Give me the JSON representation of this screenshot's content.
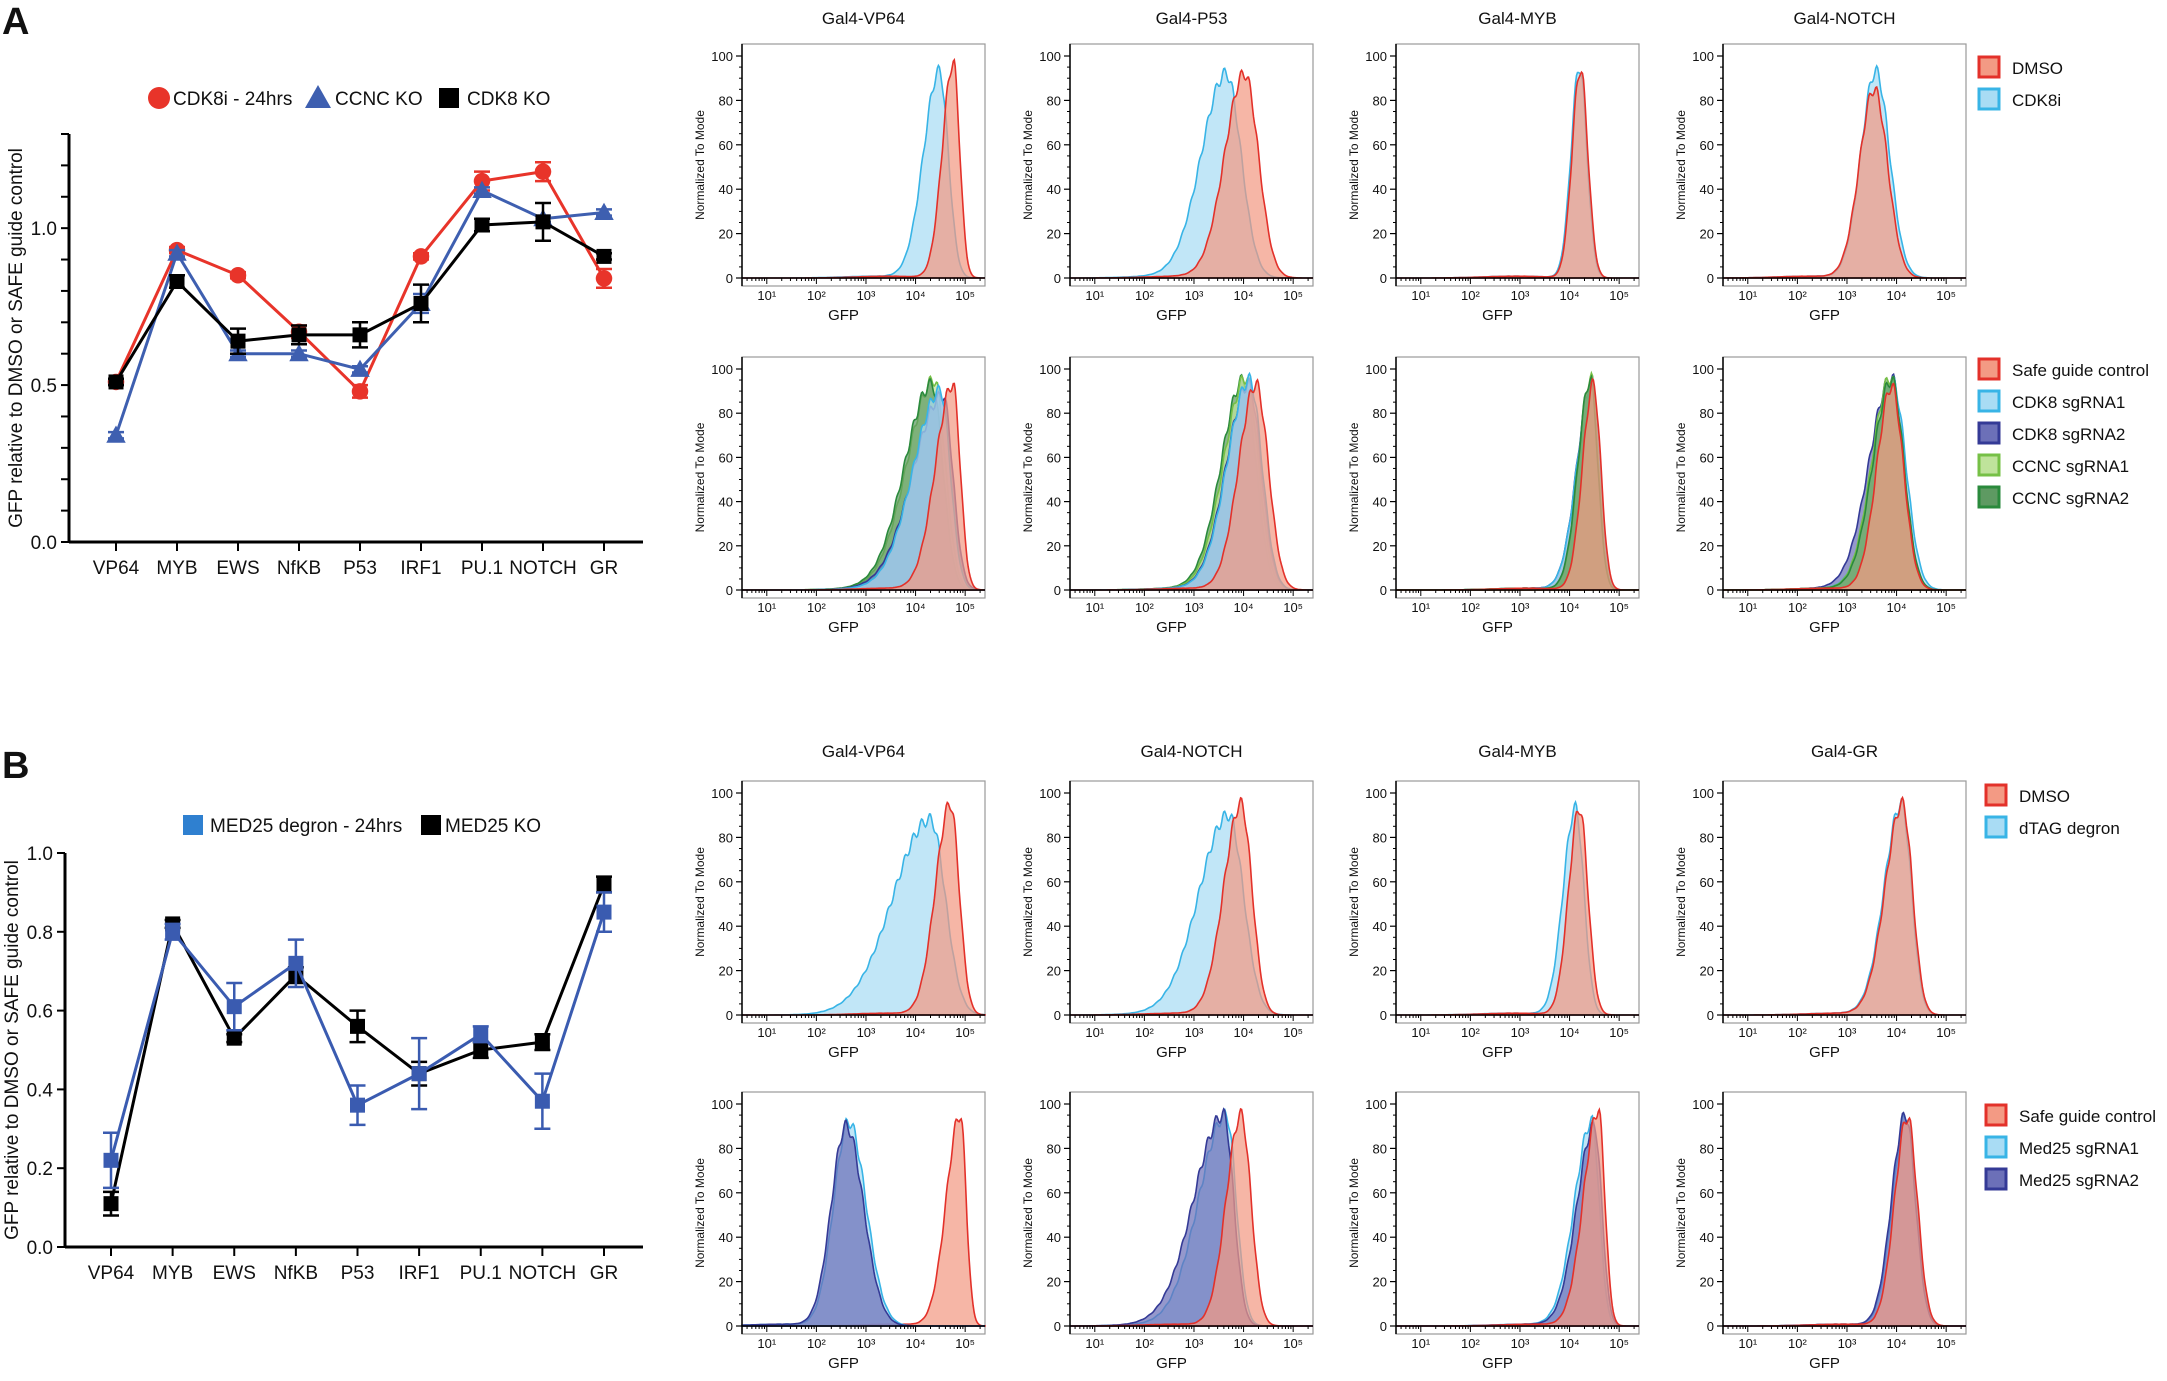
{
  "panels": [
    {
      "letter": "A"
    },
    {
      "letter": "B"
    }
  ],
  "chart_data": [
    {
      "type": "line",
      "panel": "A",
      "ylabel": "GFP relative to DMSO or SAFE guide control",
      "categories": [
        "VP64",
        "MYB",
        "EWS",
        "NfKB",
        "P53",
        "IRF1",
        "PU.1",
        "NOTCH",
        "GR"
      ],
      "ylim": [
        0,
        1.3
      ],
      "yticks": [
        0,
        0.1,
        0.2,
        0.3,
        0.4,
        0.5,
        0.6,
        0.7,
        0.8,
        0.9,
        1.0,
        1.1,
        1.2,
        1.3
      ],
      "ytick_labels": [
        "0.0",
        "0.5",
        "1.0"
      ],
      "ytick_label_values": [
        0,
        0.5,
        1.0
      ],
      "legend_position": "top",
      "series": [
        {
          "name": "CDK8i - 24hrs",
          "marker": "circle",
          "color": "#e8342a",
          "values": [
            0.51,
            0.93,
            0.85,
            0.67,
            0.48,
            0.91,
            1.15,
            1.18,
            0.84
          ],
          "errors": [
            0.01,
            0.01,
            0.01,
            0.02,
            0.02,
            0.01,
            0.03,
            0.03,
            0.03
          ]
        },
        {
          "name": "CCNC KO",
          "marker": "triangle",
          "color": "#3e5fb0",
          "values": [
            0.34,
            0.92,
            0.6,
            0.6,
            0.55,
            0.76,
            1.12,
            1.03,
            1.05
          ],
          "errors": [
            0.01,
            0.01,
            0.01,
            0.01,
            0.01,
            0.03,
            0.01,
            0.01,
            0.01
          ]
        },
        {
          "name": "CDK8 KO",
          "marker": "square",
          "color": "#000000",
          "values": [
            0.51,
            0.83,
            0.64,
            0.66,
            0.66,
            0.76,
            1.01,
            1.02,
            0.91
          ],
          "errors": [
            0.01,
            0.02,
            0.04,
            0.03,
            0.04,
            0.06,
            0.02,
            0.06,
            0.01
          ]
        }
      ]
    },
    {
      "type": "line",
      "panel": "B",
      "ylabel": "GFP relative to DMSO or SAFE guide control",
      "categories": [
        "VP64",
        "MYB",
        "EWS",
        "NfKB",
        "P53",
        "IRF1",
        "PU.1",
        "NOTCH",
        "GR"
      ],
      "ylim": [
        0,
        1.0
      ],
      "yticks": [
        0,
        0.2,
        0.4,
        0.6,
        0.8,
        1.0
      ],
      "ytick_labels": [
        "0.0",
        "0.2",
        "0.4",
        "0.6",
        "0.8",
        "1.0"
      ],
      "ytick_label_values": [
        0,
        0.2,
        0.4,
        0.6,
        0.8,
        1.0
      ],
      "legend_position": "top",
      "series": [
        {
          "name": "MED25 KO",
          "marker": "square",
          "color": "#000000",
          "values": [
            0.11,
            0.82,
            0.53,
            0.69,
            0.56,
            0.44,
            0.5,
            0.52,
            0.92
          ],
          "errors": [
            0.03,
            0.01,
            0.01,
            0.02,
            0.04,
            0.03,
            0.02,
            0.02,
            0.02
          ]
        },
        {
          "name": "MED25 degron - 24hrs",
          "marker": "square",
          "color": "#3a5bb0",
          "legend_color": "#2f80d0",
          "values": [
            0.22,
            0.8,
            0.61,
            0.72,
            0.36,
            0.44,
            0.54,
            0.37,
            0.85
          ],
          "errors": [
            0.07,
            0.02,
            0.06,
            0.06,
            0.05,
            0.09,
            0.02,
            0.07,
            0.05
          ]
        }
      ],
      "legend_order": [
        1,
        0
      ]
    }
  ],
  "histograms": {
    "xlabel": "GFP",
    "ylabel": "Normalized To Mode",
    "xtick_labels": [
      "10¹",
      "10²",
      "10³",
      "10⁴",
      "10⁵"
    ],
    "xtick_exponents": [
      1,
      2,
      3,
      4,
      5
    ],
    "xlim_log10": [
      0.5,
      5.4
    ],
    "ylim": [
      0,
      100
    ],
    "ytick_labels": [
      "0",
      "20",
      "40",
      "60",
      "80",
      "100"
    ],
    "styles": {
      "red": {
        "fill": "#f39a84",
        "stroke": "#e3312a"
      },
      "cyan": {
        "fill": "#a9dcf4",
        "stroke": "#38b4e6"
      },
      "navy": {
        "fill": "#6c70b8",
        "stroke": "#343a96"
      },
      "lime": {
        "fill": "#bfe39b",
        "stroke": "#76c046"
      },
      "green": {
        "fill": "#5e9a62",
        "stroke": "#2a8a3c"
      }
    },
    "rows": [
      {
        "titles": [
          "Gal4-VP64",
          "Gal4-P53",
          "Gal4-MYB",
          "Gal4-NOTCH"
        ],
        "legend": [
          {
            "label": "DMSO",
            "style": "red"
          },
          {
            "label": "CDK8i",
            "style": "cyan"
          }
        ],
        "panels": [
          [
            {
              "style": "cyan",
              "peak_log10": 4.48,
              "height": 93,
              "sd_left": 0.32,
              "sd_right": 0.18
            },
            {
              "style": "red",
              "peak_log10": 4.76,
              "height": 97,
              "sd_left": 0.22,
              "sd_right": 0.13
            }
          ],
          [
            {
              "style": "cyan",
              "peak_log10": 3.65,
              "height": 92,
              "sd_left": 0.5,
              "sd_right": 0.3
            },
            {
              "style": "red",
              "peak_log10": 4.02,
              "height": 92,
              "sd_left": 0.4,
              "sd_right": 0.28
            }
          ],
          [
            {
              "style": "cyan",
              "peak_log10": 4.2,
              "height": 95,
              "sd_left": 0.17,
              "sd_right": 0.15
            },
            {
              "style": "red",
              "peak_log10": 4.22,
              "height": 94,
              "sd_left": 0.17,
              "sd_right": 0.15
            }
          ],
          [
            {
              "style": "cyan",
              "peak_log10": 3.58,
              "height": 93,
              "sd_left": 0.3,
              "sd_right": 0.28
            },
            {
              "style": "red",
              "peak_log10": 3.55,
              "height": 85,
              "sd_left": 0.3,
              "sd_right": 0.27
            }
          ]
        ]
      },
      {
        "titles": [],
        "legend": [
          {
            "label": "Safe guide control",
            "style": "red"
          },
          {
            "label": "CDK8 sgRNA1",
            "style": "cyan"
          },
          {
            "label": "CDK8 sgRNA2",
            "style": "navy"
          },
          {
            "label": "CCNC sgRNA1",
            "style": "lime"
          },
          {
            "label": "CCNC sgRNA2",
            "style": "green"
          }
        ],
        "panels": [
          [
            {
              "style": "lime",
              "peak_log10": 4.38,
              "height": 95,
              "sd_left": 0.55,
              "sd_right": 0.22
            },
            {
              "style": "green",
              "peak_log10": 4.33,
              "height": 93,
              "sd_left": 0.55,
              "sd_right": 0.22
            },
            {
              "style": "navy",
              "peak_log10": 4.55,
              "height": 88,
              "sd_left": 0.6,
              "sd_right": 0.2
            },
            {
              "style": "cyan",
              "peak_log10": 4.5,
              "height": 90,
              "sd_left": 0.55,
              "sd_right": 0.2
            },
            {
              "style": "red",
              "peak_log10": 4.75,
              "height": 93,
              "sd_left": 0.35,
              "sd_right": 0.15
            }
          ],
          [
            {
              "style": "green",
              "peak_log10": 4.0,
              "height": 95,
              "sd_left": 0.45,
              "sd_right": 0.25
            },
            {
              "style": "lime",
              "peak_log10": 4.05,
              "height": 96,
              "sd_left": 0.45,
              "sd_right": 0.25
            },
            {
              "style": "navy",
              "peak_log10": 4.1,
              "height": 93,
              "sd_left": 0.45,
              "sd_right": 0.25
            },
            {
              "style": "cyan",
              "peak_log10": 4.12,
              "height": 95,
              "sd_left": 0.45,
              "sd_right": 0.25
            },
            {
              "style": "red",
              "peak_log10": 4.25,
              "height": 93,
              "sd_left": 0.35,
              "sd_right": 0.25
            }
          ],
          [
            {
              "style": "navy",
              "peak_log10": 4.45,
              "height": 94,
              "sd_left": 0.3,
              "sd_right": 0.15
            },
            {
              "style": "cyan",
              "peak_log10": 4.45,
              "height": 93,
              "sd_left": 0.3,
              "sd_right": 0.15
            },
            {
              "style": "lime",
              "peak_log10": 4.43,
              "height": 96,
              "sd_left": 0.25,
              "sd_right": 0.15
            },
            {
              "style": "green",
              "peak_log10": 4.42,
              "height": 95,
              "sd_left": 0.25,
              "sd_right": 0.15
            },
            {
              "style": "red",
              "peak_log10": 4.48,
              "height": 93,
              "sd_left": 0.22,
              "sd_right": 0.15
            }
          ],
          [
            {
              "style": "navy",
              "peak_log10": 3.9,
              "height": 96,
              "sd_left": 0.45,
              "sd_right": 0.25
            },
            {
              "style": "cyan",
              "peak_log10": 3.92,
              "height": 94,
              "sd_left": 0.4,
              "sd_right": 0.27
            },
            {
              "style": "lime",
              "peak_log10": 3.88,
              "height": 96,
              "sd_left": 0.38,
              "sd_right": 0.25
            },
            {
              "style": "green",
              "peak_log10": 3.9,
              "height": 95,
              "sd_left": 0.38,
              "sd_right": 0.25
            },
            {
              "style": "red",
              "peak_log10": 3.9,
              "height": 92,
              "sd_left": 0.3,
              "sd_right": 0.24
            }
          ]
        ]
      },
      {
        "titles": [
          "Gal4-VP64",
          "Gal4-NOTCH",
          "Gal4-MYB",
          "Gal4-GR"
        ],
        "legend": [
          {
            "label": "DMSO",
            "style": "red"
          },
          {
            "label": "dTAG degron",
            "style": "cyan"
          }
        ],
        "panels": [
          [
            {
              "style": "cyan",
              "peak_log10": 4.3,
              "height": 88,
              "sd_left": 0.75,
              "sd_right": 0.3
            },
            {
              "style": "red",
              "peak_log10": 4.7,
              "height": 95,
              "sd_left": 0.3,
              "sd_right": 0.18
            }
          ],
          [
            {
              "style": "cyan",
              "peak_log10": 3.7,
              "height": 90,
              "sd_left": 0.6,
              "sd_right": 0.3
            },
            {
              "style": "red",
              "peak_log10": 3.95,
              "height": 95,
              "sd_left": 0.35,
              "sd_right": 0.22
            }
          ],
          [
            {
              "style": "cyan",
              "peak_log10": 4.12,
              "height": 93,
              "sd_left": 0.25,
              "sd_right": 0.17
            },
            {
              "style": "red",
              "peak_log10": 4.2,
              "height": 93,
              "sd_left": 0.22,
              "sd_right": 0.17
            }
          ],
          [
            {
              "style": "cyan",
              "peak_log10": 4.1,
              "height": 95,
              "sd_left": 0.35,
              "sd_right": 0.2
            },
            {
              "style": "red",
              "peak_log10": 4.12,
              "height": 95,
              "sd_left": 0.35,
              "sd_right": 0.2
            }
          ]
        ]
      },
      {
        "titles": [],
        "legend": [
          {
            "label": "Safe guide control",
            "style": "red"
          },
          {
            "label": "Med25 sgRNA1",
            "style": "cyan"
          },
          {
            "label": "Med25 sgRNA2",
            "style": "navy"
          }
        ],
        "panels": [
          [
            {
              "style": "red",
              "peak_log10": 4.9,
              "height": 95,
              "sd_left": 0.28,
              "sd_right": 0.12
            },
            {
              "style": "cyan",
              "peak_log10": 2.65,
              "height": 92,
              "sd_left": 0.3,
              "sd_right": 0.35
            },
            {
              "style": "navy",
              "peak_log10": 2.6,
              "height": 90,
              "sd_left": 0.3,
              "sd_right": 0.35
            }
          ],
          [
            {
              "style": "cyan",
              "peak_log10": 3.65,
              "height": 95,
              "sd_left": 0.55,
              "sd_right": 0.2
            },
            {
              "style": "navy",
              "peak_log10": 3.6,
              "height": 95,
              "sd_left": 0.6,
              "sd_right": 0.2
            },
            {
              "style": "red",
              "peak_log10": 3.95,
              "height": 95,
              "sd_left": 0.3,
              "sd_right": 0.2
            }
          ],
          [
            {
              "style": "cyan",
              "peak_log10": 4.45,
              "height": 92,
              "sd_left": 0.35,
              "sd_right": 0.15
            },
            {
              "style": "navy",
              "peak_log10": 4.5,
              "height": 90,
              "sd_left": 0.35,
              "sd_right": 0.15
            },
            {
              "style": "red",
              "peak_log10": 4.58,
              "height": 97,
              "sd_left": 0.3,
              "sd_right": 0.13
            }
          ],
          [
            {
              "style": "cyan",
              "peak_log10": 4.2,
              "height": 95,
              "sd_left": 0.28,
              "sd_right": 0.2
            },
            {
              "style": "navy",
              "peak_log10": 4.18,
              "height": 95,
              "sd_left": 0.28,
              "sd_right": 0.2
            },
            {
              "style": "red",
              "peak_log10": 4.22,
              "height": 94,
              "sd_left": 0.26,
              "sd_right": 0.2
            }
          ]
        ]
      }
    ]
  }
}
